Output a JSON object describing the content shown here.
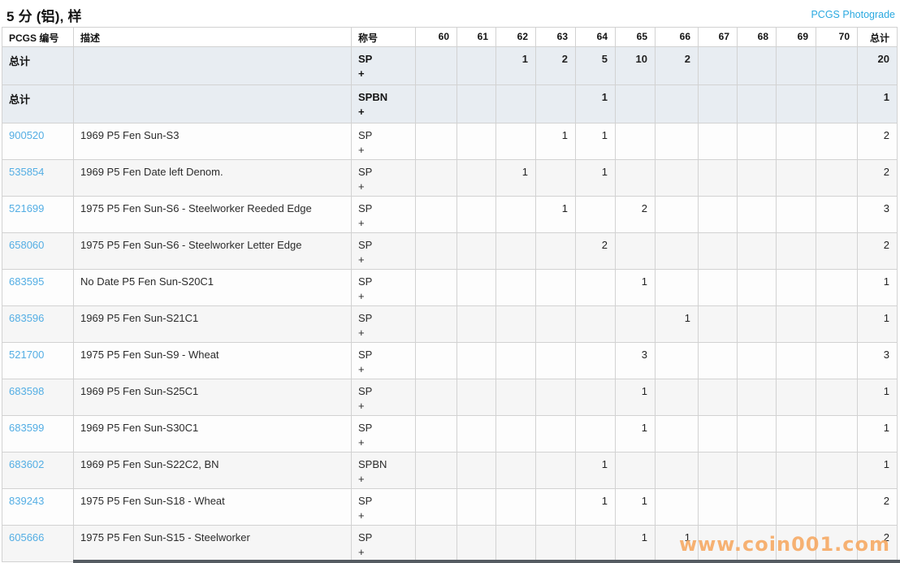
{
  "page": {
    "title": "5 分 (铝), 样",
    "photograde_link_label": "PCGS Photograde",
    "watermark": "www.coin001.com"
  },
  "colors": {
    "link_blue": "#54aee4",
    "photograde_blue": "#2aa9e0",
    "summary_row_bg": "#e8edf2",
    "alt_row_bg": "#f6f6f6",
    "border_gray": "#d2d2d2",
    "watermark_orange": "#f6a55c"
  },
  "table": {
    "headers": {
      "pcgs_no": "PCGS 编号",
      "description": "描述",
      "designation": "称号",
      "grades": [
        "60",
        "61",
        "62",
        "63",
        "64",
        "65",
        "66",
        "67",
        "68",
        "69",
        "70"
      ],
      "total": "总计"
    },
    "rows": [
      {
        "type": "summary",
        "label": "总计",
        "description": "",
        "designation": "SP",
        "designation_suffix": "+",
        "grades": {
          "62": "1",
          "63": "2",
          "64": "5",
          "65": "10",
          "66": "2"
        },
        "total": "20"
      },
      {
        "type": "summary",
        "label": "总计",
        "description": "",
        "designation": "SPBN",
        "designation_suffix": "+",
        "grades": {
          "64": "1"
        },
        "total": "1"
      },
      {
        "type": "data",
        "pcgs_number": "900520",
        "description": "1969 P5 Fen Sun-S3",
        "designation": "SP",
        "designation_suffix": "+",
        "grades": {
          "63": "1",
          "64": "1"
        },
        "total": "2"
      },
      {
        "type": "data",
        "pcgs_number": "535854",
        "description": "1969 P5 Fen Date left Denom.",
        "designation": "SP",
        "designation_suffix": "+",
        "grades": {
          "62": "1",
          "64": "1"
        },
        "total": "2"
      },
      {
        "type": "data",
        "pcgs_number": "521699",
        "description": "1975 P5 Fen Sun-S6 - Steelworker Reeded Edge",
        "designation": "SP",
        "designation_suffix": "+",
        "grades": {
          "63": "1",
          "65": "2"
        },
        "total": "3"
      },
      {
        "type": "data",
        "pcgs_number": "658060",
        "description": "1975 P5 Fen Sun-S6 - Steelworker Letter Edge",
        "designation": "SP",
        "designation_suffix": "+",
        "grades": {
          "64": "2"
        },
        "total": "2"
      },
      {
        "type": "data",
        "pcgs_number": "683595",
        "description": "No Date P5 Fen Sun-S20C1",
        "designation": "SP",
        "designation_suffix": "+",
        "grades": {
          "65": "1"
        },
        "total": "1"
      },
      {
        "type": "data",
        "pcgs_number": "683596",
        "description": "1969 P5 Fen Sun-S21C1",
        "designation": "SP",
        "designation_suffix": "+",
        "grades": {
          "66": "1"
        },
        "total": "1"
      },
      {
        "type": "data",
        "pcgs_number": "521700",
        "description": "1975 P5 Fen Sun-S9 - Wheat",
        "designation": "SP",
        "designation_suffix": "+",
        "grades": {
          "65": "3"
        },
        "total": "3"
      },
      {
        "type": "data",
        "pcgs_number": "683598",
        "description": "1969 P5 Fen Sun-S25C1",
        "designation": "SP",
        "designation_suffix": "+",
        "grades": {
          "65": "1"
        },
        "total": "1"
      },
      {
        "type": "data",
        "pcgs_number": "683599",
        "description": "1969 P5 Fen Sun-S30C1",
        "designation": "SP",
        "designation_suffix": "+",
        "grades": {
          "65": "1"
        },
        "total": "1"
      },
      {
        "type": "data",
        "pcgs_number": "683602",
        "description": "1969 P5 Fen Sun-S22C2, BN",
        "designation": "SPBN",
        "designation_suffix": "+",
        "grades": {
          "64": "1"
        },
        "total": "1"
      },
      {
        "type": "data",
        "pcgs_number": "839243",
        "description": "1975 P5 Fen Sun-S18 - Wheat",
        "designation": "SP",
        "designation_suffix": "+",
        "grades": {
          "64": "1",
          "65": "1"
        },
        "total": "2"
      },
      {
        "type": "data",
        "pcgs_number": "605666",
        "description": "1975 P5 Fen Sun-S15 - Steelworker",
        "designation": "SP",
        "designation_suffix": "+",
        "grades": {
          "65": "1",
          "66": "1"
        },
        "total": "2"
      }
    ]
  }
}
